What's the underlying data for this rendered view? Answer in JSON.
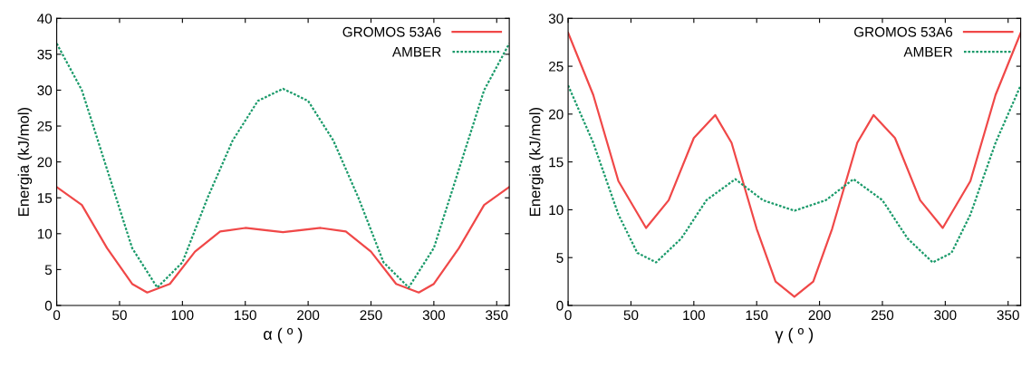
{
  "chart_data": [
    {
      "type": "line",
      "xlabel": "α ( º )",
      "ylabel": "Energia (kJ/mol)",
      "xlim": [
        0,
        360
      ],
      "ylim": [
        0,
        40
      ],
      "xticks": [
        0,
        50,
        100,
        150,
        200,
        250,
        300,
        350
      ],
      "yticks": [
        0,
        5,
        10,
        15,
        20,
        25,
        30,
        35,
        40
      ],
      "legend": "top right",
      "grid": false,
      "marker": "none",
      "series": [
        {
          "name": "GROMOS 53A6",
          "color": "#f04848",
          "line_style": "solid",
          "x": [
            0,
            20,
            40,
            60,
            72,
            90,
            110,
            130,
            150,
            180,
            210,
            230,
            250,
            270,
            288,
            300,
            320,
            340,
            360
          ],
          "values": [
            16.5,
            14,
            8,
            3,
            1.8,
            3,
            7.5,
            10.3,
            10.8,
            10.2,
            10.8,
            10.3,
            7.5,
            3,
            1.8,
            3,
            8,
            14,
            16.5
          ]
        },
        {
          "name": "AMBER",
          "color": "#1a9a6a",
          "line_style": "dotted",
          "x": [
            0,
            20,
            40,
            60,
            80,
            100,
            120,
            140,
            160,
            180,
            200,
            220,
            240,
            260,
            280,
            300,
            320,
            340,
            360
          ],
          "values": [
            36.5,
            30,
            19,
            8,
            2.5,
            6,
            15,
            23,
            28.5,
            30.2,
            28.5,
            23,
            15,
            6,
            2.5,
            8,
            19,
            30,
            36.5
          ]
        }
      ]
    },
    {
      "type": "line",
      "xlabel": "γ ( º )",
      "ylabel": "Energia (kJ/mol)",
      "xlim": [
        0,
        360
      ],
      "ylim": [
        0,
        30
      ],
      "xticks": [
        0,
        50,
        100,
        150,
        200,
        250,
        300,
        350
      ],
      "yticks": [
        0,
        5,
        10,
        15,
        20,
        25,
        30
      ],
      "legend": "top right",
      "grid": false,
      "marker": "none",
      "series": [
        {
          "name": "GROMOS 53A6",
          "color": "#f04848",
          "line_style": "solid",
          "x": [
            0,
            20,
            40,
            62,
            80,
            100,
            117,
            130,
            150,
            165,
            180,
            195,
            210,
            230,
            243,
            260,
            280,
            298,
            320,
            340,
            360
          ],
          "values": [
            28.5,
            22,
            13,
            8.1,
            11,
            17.5,
            19.9,
            17,
            8,
            2.5,
            0.9,
            2.5,
            8,
            17,
            19.9,
            17.5,
            11,
            8.1,
            13,
            22,
            28.5
          ]
        },
        {
          "name": "AMBER",
          "color": "#1a9a6a",
          "line_style": "dotted",
          "x": [
            0,
            20,
            40,
            55,
            70,
            90,
            110,
            133,
            155,
            180,
            205,
            227,
            250,
            270,
            290,
            305,
            320,
            340,
            360
          ],
          "values": [
            23,
            17,
            9.5,
            5.5,
            4.5,
            7,
            11,
            13.2,
            11,
            9.9,
            11,
            13.2,
            11,
            7,
            4.5,
            5.5,
            9.5,
            17,
            23
          ]
        }
      ]
    }
  ]
}
